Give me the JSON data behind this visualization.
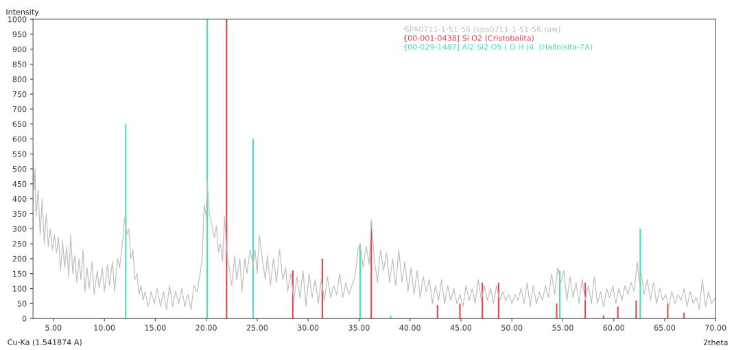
{
  "chart_data": {
    "type": "line",
    "xlabel": "2theta",
    "ylabel": "Intensity",
    "annotations": [
      "Cu-Ka (1.541874 A)"
    ],
    "legend": "top right",
    "xlim": [
      3,
      70
    ],
    "ylim": [
      0,
      1000
    ],
    "xticks": [
      {
        "value": 5,
        "label": "5.00"
      },
      {
        "value": 10,
        "label": "10.00"
      },
      {
        "value": 15,
        "label": "15.00"
      },
      {
        "value": 20,
        "label": "20.00"
      },
      {
        "value": 25,
        "label": "25.00"
      },
      {
        "value": 30,
        "label": "30.00"
      },
      {
        "value": 35,
        "label": "35.00"
      },
      {
        "value": 40,
        "label": "40.00"
      },
      {
        "value": 45,
        "label": "45.00"
      },
      {
        "value": 50,
        "label": "50.00"
      },
      {
        "value": 55,
        "label": "55.00"
      },
      {
        "value": 60,
        "label": "60.00"
      },
      {
        "value": 65,
        "label": "65.00"
      },
      {
        "value": 70,
        "label": "70.00"
      }
    ],
    "yticks": [
      0,
      50,
      100,
      150,
      200,
      250,
      300,
      350,
      400,
      450,
      500,
      550,
      600,
      650,
      700,
      750,
      800,
      850,
      900,
      950,
      1000
    ],
    "series": [
      {
        "name": "SPA0711-1-51-56 (spa0711-1-51-56.raw)",
        "color": "#c0c0c0",
        "x": [
          3.0,
          3.1,
          3.2,
          3.3,
          3.5,
          3.7,
          3.9,
          4.1,
          4.3,
          4.5,
          4.7,
          4.9,
          5.1,
          5.3,
          5.5,
          5.7,
          5.9,
          6.1,
          6.3,
          6.5,
          6.7,
          6.9,
          7.1,
          7.3,
          7.5,
          7.7,
          7.9,
          8.1,
          8.3,
          8.5,
          8.8,
          9.0,
          9.3,
          9.5,
          9.8,
          10.0,
          10.3,
          10.5,
          10.8,
          11.0,
          11.3,
          11.5,
          11.8,
          12.0,
          12.2,
          12.4,
          12.6,
          12.8,
          13.0,
          13.2,
          13.4,
          13.6,
          13.8,
          14.0,
          14.3,
          14.6,
          14.9,
          15.2,
          15.5,
          15.8,
          16.1,
          16.4,
          16.7,
          17.0,
          17.3,
          17.6,
          17.9,
          18.2,
          18.5,
          18.8,
          19.1,
          19.4,
          19.6,
          19.8,
          20.0,
          20.1,
          20.3,
          20.5,
          20.8,
          21.0,
          21.2,
          21.4,
          21.6,
          21.8,
          22.0,
          22.3,
          22.5,
          22.8,
          23.0,
          23.3,
          23.5,
          23.8,
          24.0,
          24.3,
          24.6,
          24.8,
          25.0,
          25.2,
          25.5,
          25.8,
          26.0,
          26.3,
          26.6,
          26.9,
          27.2,
          27.5,
          27.8,
          28.0,
          28.3,
          28.6,
          28.9,
          29.2,
          29.5,
          29.8,
          30.1,
          30.4,
          30.7,
          31.0,
          31.3,
          31.6,
          31.9,
          32.2,
          32.5,
          32.8,
          33.1,
          33.4,
          33.7,
          34.0,
          34.3,
          34.6,
          34.9,
          35.1,
          35.4,
          35.7,
          36.0,
          36.2,
          36.5,
          36.8,
          37.1,
          37.4,
          37.7,
          38.0,
          38.3,
          38.6,
          38.9,
          39.2,
          39.5,
          39.8,
          40.1,
          40.4,
          40.7,
          41.0,
          41.3,
          41.6,
          41.9,
          42.2,
          42.5,
          42.8,
          43.1,
          43.4,
          43.7,
          44.0,
          44.3,
          44.6,
          44.9,
          45.2,
          45.5,
          45.8,
          46.1,
          46.4,
          46.7,
          47.0,
          47.3,
          47.6,
          47.9,
          48.2,
          48.5,
          48.8,
          49.1,
          49.4,
          49.7,
          50.0,
          50.3,
          50.6,
          50.9,
          51.2,
          51.5,
          51.8,
          52.1,
          52.4,
          52.7,
          53.0,
          53.3,
          53.6,
          53.9,
          54.2,
          54.5,
          54.8,
          55.1,
          55.4,
          55.7,
          56.0,
          56.3,
          56.6,
          56.9,
          57.2,
          57.5,
          57.8,
          58.1,
          58.4,
          58.7,
          59.0,
          59.3,
          59.6,
          59.9,
          60.2,
          60.5,
          60.8,
          61.1,
          61.4,
          61.7,
          62.0,
          62.3,
          62.5,
          62.7,
          63.0,
          63.3,
          63.6,
          63.9,
          64.2,
          64.5,
          64.8,
          65.1,
          65.4,
          65.7,
          66.0,
          66.3,
          66.6,
          66.9,
          67.2,
          67.5,
          67.8,
          68.1,
          68.4,
          68.7,
          69.0,
          69.3,
          69.6,
          70.0
        ],
        "values": [
          560,
          430,
          500,
          340,
          430,
          280,
          400,
          250,
          350,
          240,
          300,
          230,
          280,
          220,
          270,
          160,
          260,
          170,
          240,
          140,
          280,
          150,
          210,
          120,
          200,
          130,
          230,
          90,
          170,
          100,
          190,
          80,
          160,
          100,
          170,
          90,
          180,
          110,
          190,
          90,
          200,
          170,
          260,
          340,
          280,
          300,
          200,
          230,
          130,
          150,
          80,
          110,
          60,
          90,
          40,
          90,
          50,
          100,
          40,
          90,
          30,
          110,
          40,
          90,
          50,
          100,
          40,
          80,
          30,
          110,
          90,
          150,
          200,
          380,
          340,
          460,
          350,
          320,
          270,
          310,
          220,
          250,
          190,
          340,
          230,
          160,
          110,
          210,
          130,
          200,
          90,
          200,
          150,
          230,
          180,
          230,
          150,
          280,
          200,
          130,
          210,
          110,
          200,
          120,
          230,
          130,
          170,
          90,
          150,
          60,
          140,
          70,
          160,
          40,
          150,
          70,
          130,
          50,
          130,
          60,
          140,
          70,
          110,
          80,
          150,
          70,
          120,
          80,
          110,
          140,
          230,
          250,
          170,
          240,
          180,
          330,
          200,
          120,
          230,
          160,
          220,
          120,
          200,
          110,
          230,
          120,
          190,
          90,
          170,
          80,
          160,
          70,
          140,
          90,
          130,
          50,
          110,
          60,
          130,
          50,
          110,
          60,
          100,
          50,
          80,
          40,
          110,
          60,
          100,
          50,
          130,
          60,
          110,
          60,
          100,
          50,
          110,
          60,
          90,
          60,
          80,
          50,
          80,
          60,
          100,
          50,
          120,
          40,
          110,
          50,
          90,
          60,
          110,
          70,
          150,
          80,
          170,
          120,
          160,
          60,
          140,
          70,
          120,
          50,
          130,
          60,
          110,
          50,
          140,
          50,
          90,
          40,
          100,
          70,
          110,
          50,
          100,
          60,
          110,
          80,
          120,
          90,
          190,
          120,
          150,
          80,
          130,
          60,
          120,
          50,
          100,
          60,
          80,
          40,
          90,
          50,
          80,
          60,
          100,
          40,
          90,
          50,
          70,
          30,
          130,
          40,
          90,
          50,
          70
        ]
      },
      {
        "name": "[00-001-0438] Si O2 (Cristobalita)",
        "color": "#e8404f",
        "type": "bar",
        "x": [
          22.0,
          28.5,
          31.4,
          36.2,
          42.7,
          44.9,
          47.1,
          48.7,
          54.4,
          57.2,
          59.0,
          60.4,
          62.2,
          65.3,
          66.9
        ],
        "values": [
          1000,
          160,
          200,
          320,
          45,
          50,
          120,
          120,
          50,
          120,
          10,
          40,
          60,
          50,
          20
        ]
      },
      {
        "name": "[00-029-1487] Al2 Si2 O5 ( O H )4  (Halloisita-7A)",
        "color": "#40e0c0",
        "type": "bar",
        "x": [
          12.1,
          20.1,
          24.6,
          35.1,
          38.1,
          54.7,
          62.6
        ],
        "values": [
          650,
          1000,
          600,
          250,
          10,
          160,
          300
        ]
      }
    ]
  }
}
